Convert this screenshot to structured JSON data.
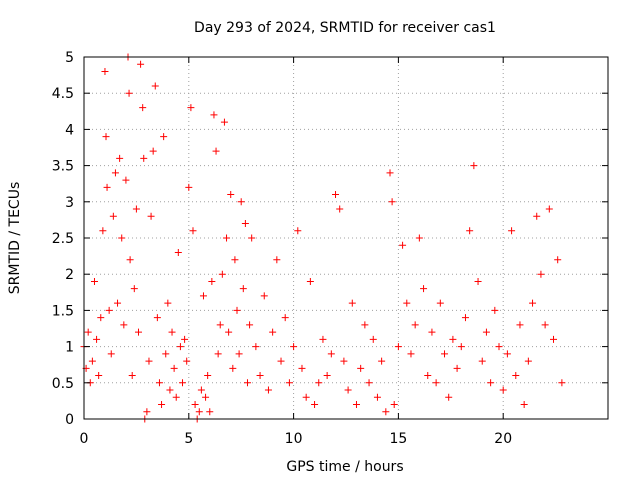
{
  "chart_data": {
    "type": "scatter",
    "title": "Day 293 of 2024, SRMTID for receiver cas1",
    "xlabel": "GPS time / hours",
    "ylabel": "SRMTID / TECUs",
    "xlim": [
      0,
      25
    ],
    "ylim": [
      0,
      5
    ],
    "xticks": [
      0,
      5,
      10,
      15,
      20
    ],
    "xtick_labels": [
      "0",
      "5",
      "10",
      "15",
      "20"
    ],
    "yticks": [
      0,
      0.5,
      1,
      1.5,
      2,
      2.5,
      3,
      3.5,
      4,
      4.5,
      5
    ],
    "ytick_labels": [
      "0",
      "0.5",
      "1",
      "1.5",
      "2",
      "2.5",
      "3",
      "3.5",
      "4",
      "4.5",
      "5"
    ],
    "grid": true,
    "marker": "plus",
    "series": [
      {
        "name": "SRMTID",
        "color": "#ff0000",
        "x": [
          0.0,
          0.1,
          0.2,
          0.3,
          0.4,
          0.5,
          0.6,
          0.7,
          0.8,
          0.9,
          1.0,
          1.05,
          1.1,
          1.2,
          1.3,
          1.4,
          1.5,
          1.6,
          1.7,
          1.8,
          1.9,
          2.0,
          2.1,
          2.15,
          2.2,
          2.3,
          2.4,
          2.5,
          2.6,
          2.7,
          2.8,
          2.85,
          2.9,
          3.0,
          3.1,
          3.2,
          3.3,
          3.4,
          3.5,
          3.6,
          3.7,
          3.8,
          3.9,
          4.0,
          4.1,
          4.2,
          4.3,
          4.4,
          4.5,
          4.6,
          4.7,
          4.8,
          4.9,
          5.0,
          5.1,
          5.2,
          5.3,
          5.4,
          5.5,
          5.6,
          5.7,
          5.8,
          5.9,
          6.0,
          6.1,
          6.2,
          6.3,
          6.4,
          6.5,
          6.6,
          6.7,
          6.8,
          6.9,
          7.0,
          7.1,
          7.2,
          7.3,
          7.4,
          7.5,
          7.6,
          7.7,
          7.8,
          7.9,
          8.0,
          8.2,
          8.4,
          8.6,
          8.8,
          9.0,
          9.2,
          9.4,
          9.6,
          9.8,
          10.0,
          10.2,
          10.4,
          10.6,
          10.8,
          11.0,
          11.2,
          11.4,
          11.6,
          11.8,
          12.0,
          12.2,
          12.4,
          12.6,
          12.8,
          13.0,
          13.2,
          13.4,
          13.6,
          13.8,
          14.0,
          14.2,
          14.4,
          14.6,
          14.7,
          14.8,
          15.0,
          15.2,
          15.4,
          15.6,
          15.8,
          16.0,
          16.2,
          16.4,
          16.6,
          16.8,
          17.0,
          17.2,
          17.4,
          17.6,
          17.8,
          18.0,
          18.2,
          18.4,
          18.6,
          18.8,
          19.0,
          19.2,
          19.4,
          19.6,
          19.8,
          20.0,
          20.2,
          20.4,
          20.6,
          20.8,
          21.0,
          21.2,
          21.4,
          21.6,
          21.8,
          22.0,
          22.2,
          22.4,
          22.6,
          22.8
        ],
        "y": [
          1.0,
          0.7,
          1.2,
          0.5,
          0.8,
          1.9,
          1.1,
          0.6,
          1.4,
          2.6,
          4.8,
          3.9,
          3.2,
          1.5,
          0.9,
          2.8,
          3.4,
          1.6,
          3.6,
          2.5,
          1.3,
          3.3,
          5.0,
          4.5,
          2.2,
          0.6,
          1.8,
          2.9,
          1.2,
          4.9,
          4.3,
          3.6,
          0.0,
          0.1,
          0.8,
          2.8,
          3.7,
          4.6,
          1.4,
          0.5,
          0.2,
          3.9,
          0.9,
          1.6,
          0.4,
          1.2,
          0.7,
          0.3,
          2.3,
          1.0,
          0.5,
          1.1,
          0.8,
          3.2,
          4.3,
          2.6,
          0.2,
          0.0,
          0.1,
          0.4,
          1.7,
          0.3,
          0.6,
          0.1,
          1.9,
          4.2,
          3.7,
          0.9,
          1.3,
          2.0,
          4.1,
          2.5,
          1.2,
          3.1,
          0.7,
          2.2,
          1.5,
          0.9,
          3.0,
          1.8,
          2.7,
          0.5,
          1.3,
          2.5,
          1.0,
          0.6,
          1.7,
          0.4,
          1.2,
          2.2,
          0.8,
          1.4,
          0.5,
          1.0,
          2.6,
          0.7,
          0.3,
          1.9,
          0.2,
          0.5,
          1.1,
          0.6,
          0.9,
          3.1,
          2.9,
          0.8,
          0.4,
          1.6,
          0.2,
          0.7,
          1.3,
          0.5,
          1.1,
          0.3,
          0.8,
          0.1,
          3.4,
          3.0,
          0.2,
          1.0,
          2.4,
          1.6,
          0.9,
          1.3,
          2.5,
          1.8,
          0.6,
          1.2,
          0.5,
          1.6,
          0.9,
          0.3,
          1.1,
          0.7,
          1.0,
          1.4,
          2.6,
          3.5,
          1.9,
          0.8,
          1.2,
          0.5,
          1.5,
          1.0,
          0.4,
          0.9,
          2.6,
          0.6,
          1.3,
          0.2,
          0.8,
          1.6,
          2.8,
          2.0,
          1.3,
          2.9,
          1.1,
          2.2,
          0.5
        ]
      }
    ]
  }
}
